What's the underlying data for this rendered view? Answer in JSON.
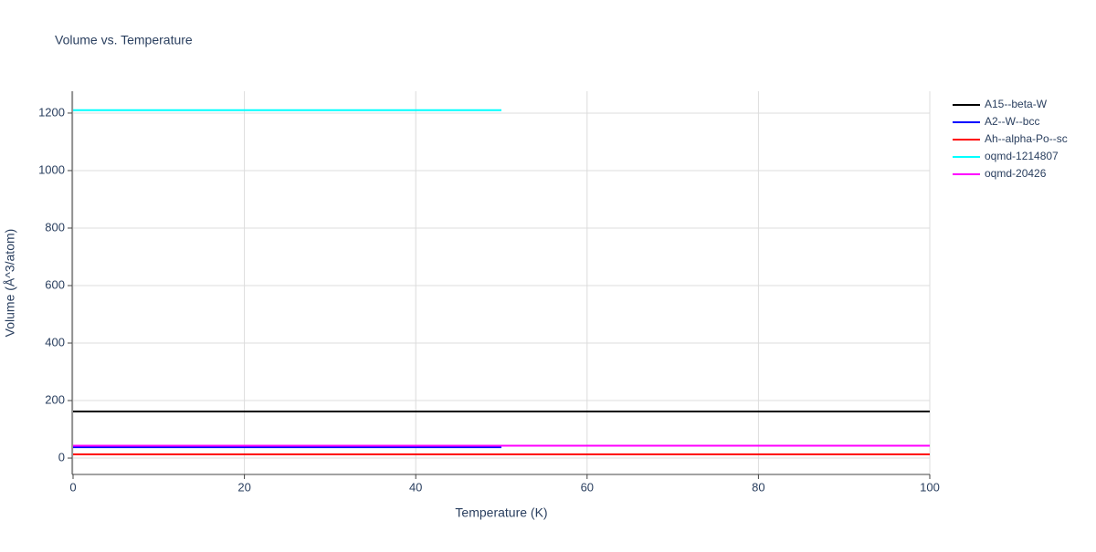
{
  "chart_data": {
    "type": "line",
    "title": "Volume vs. Temperature",
    "x_label": "Temperature (K)",
    "y_label": "Volume (Å^3/atom)",
    "xlim": [
      0,
      100
    ],
    "xticks": [
      0,
      20,
      40,
      60,
      80,
      100
    ],
    "ylim": [
      -57,
      1276
    ],
    "yticks": [
      0,
      200,
      400,
      600,
      800,
      1000,
      1200
    ],
    "grid": true,
    "series": [
      {
        "name": "A15--beta-W",
        "color": "#000000",
        "x": [
          0,
          100
        ],
        "values": [
          162,
          162
        ]
      },
      {
        "name": "A2--W--bcc",
        "color": "#0000ff",
        "x": [
          0,
          50
        ],
        "values": [
          38,
          38
        ]
      },
      {
        "name": "Ah--alpha-Po--sc",
        "color": "#ff0000",
        "x": [
          0,
          100
        ],
        "values": [
          13,
          13
        ]
      },
      {
        "name": "oqmd-1214807",
        "color": "#00ffff",
        "x": [
          0,
          50
        ],
        "values": [
          1210,
          1210
        ]
      },
      {
        "name": "oqmd-20426",
        "color": "#ff00ff",
        "x": [
          0,
          100
        ],
        "values": [
          43,
          43
        ]
      }
    ]
  }
}
